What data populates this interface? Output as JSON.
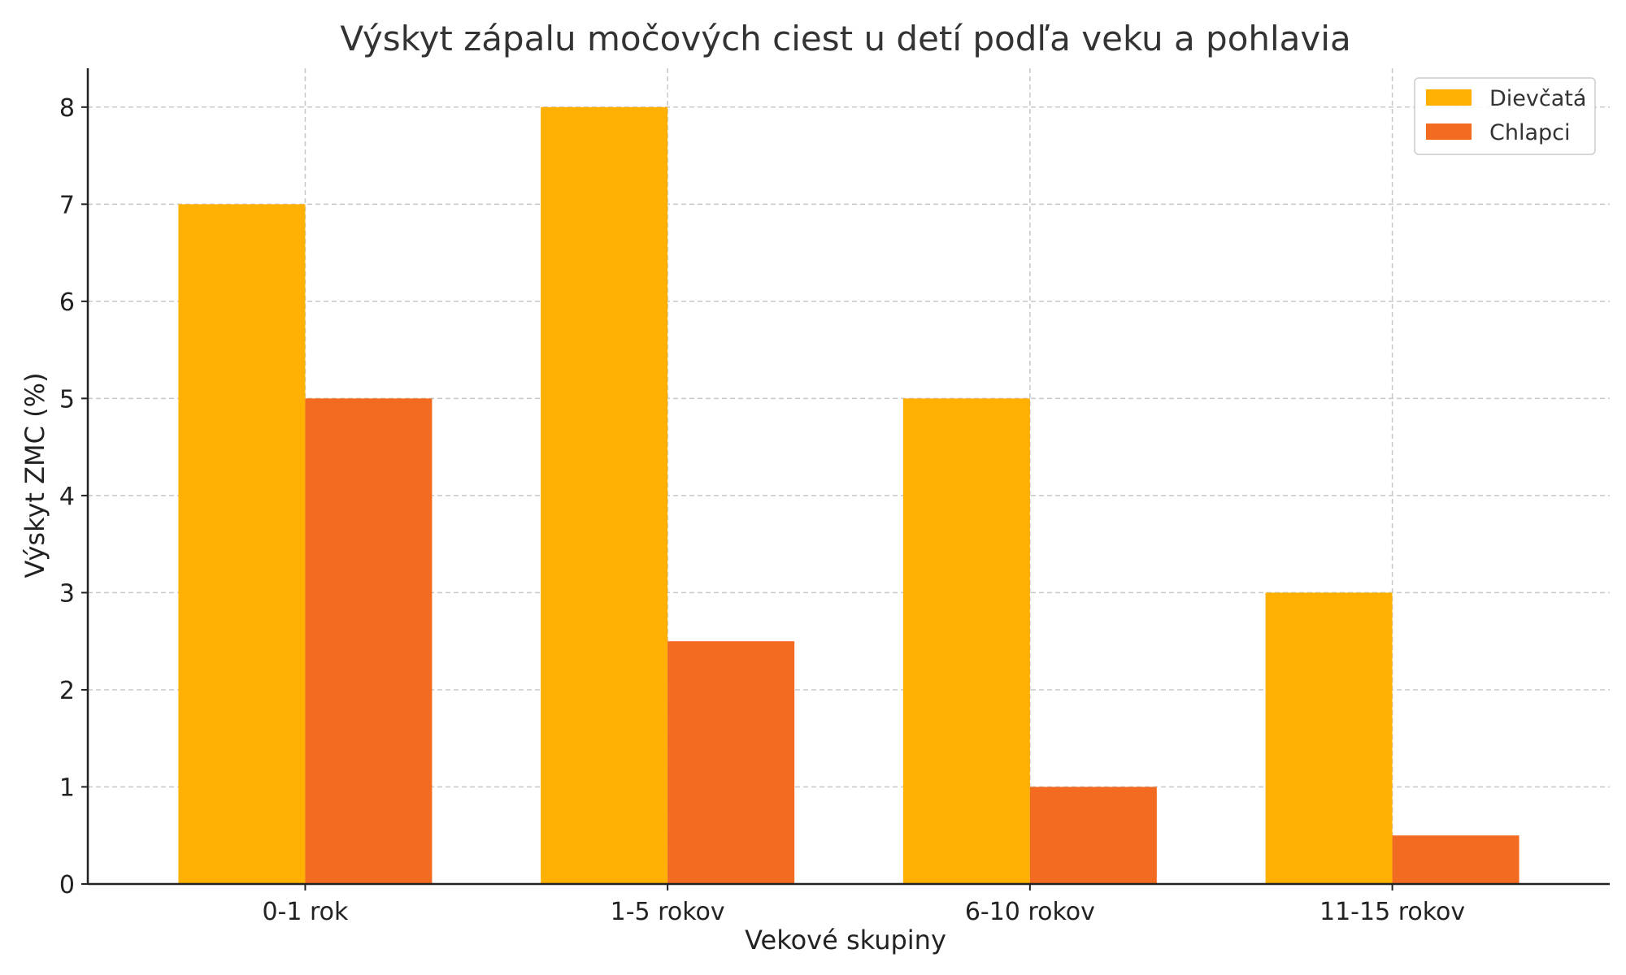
{
  "chart_data": {
    "type": "bar",
    "title": "Výskyt zápalu močových ciest u detí podľa veku a pohlavia",
    "xlabel": "Vekové skupiny",
    "ylabel": "Výskyt ZMC (%)",
    "categories": [
      "0-1 rok",
      "1-5 rokov",
      "6-10 rokov",
      "11-15 rokov"
    ],
    "series": [
      {
        "name": "Dievčatá",
        "values": [
          7,
          8,
          5,
          3
        ],
        "color": "#FFB000"
      },
      {
        "name": "Chlapci",
        "values": [
          5,
          2.5,
          1,
          0.5
        ],
        "color": "#F26B21"
      }
    ],
    "ylim": [
      0,
      8.4
    ],
    "yticks": [
      0,
      1,
      2,
      3,
      4,
      5,
      6,
      7,
      8
    ],
    "grid": true,
    "legend_position": "top-right"
  }
}
